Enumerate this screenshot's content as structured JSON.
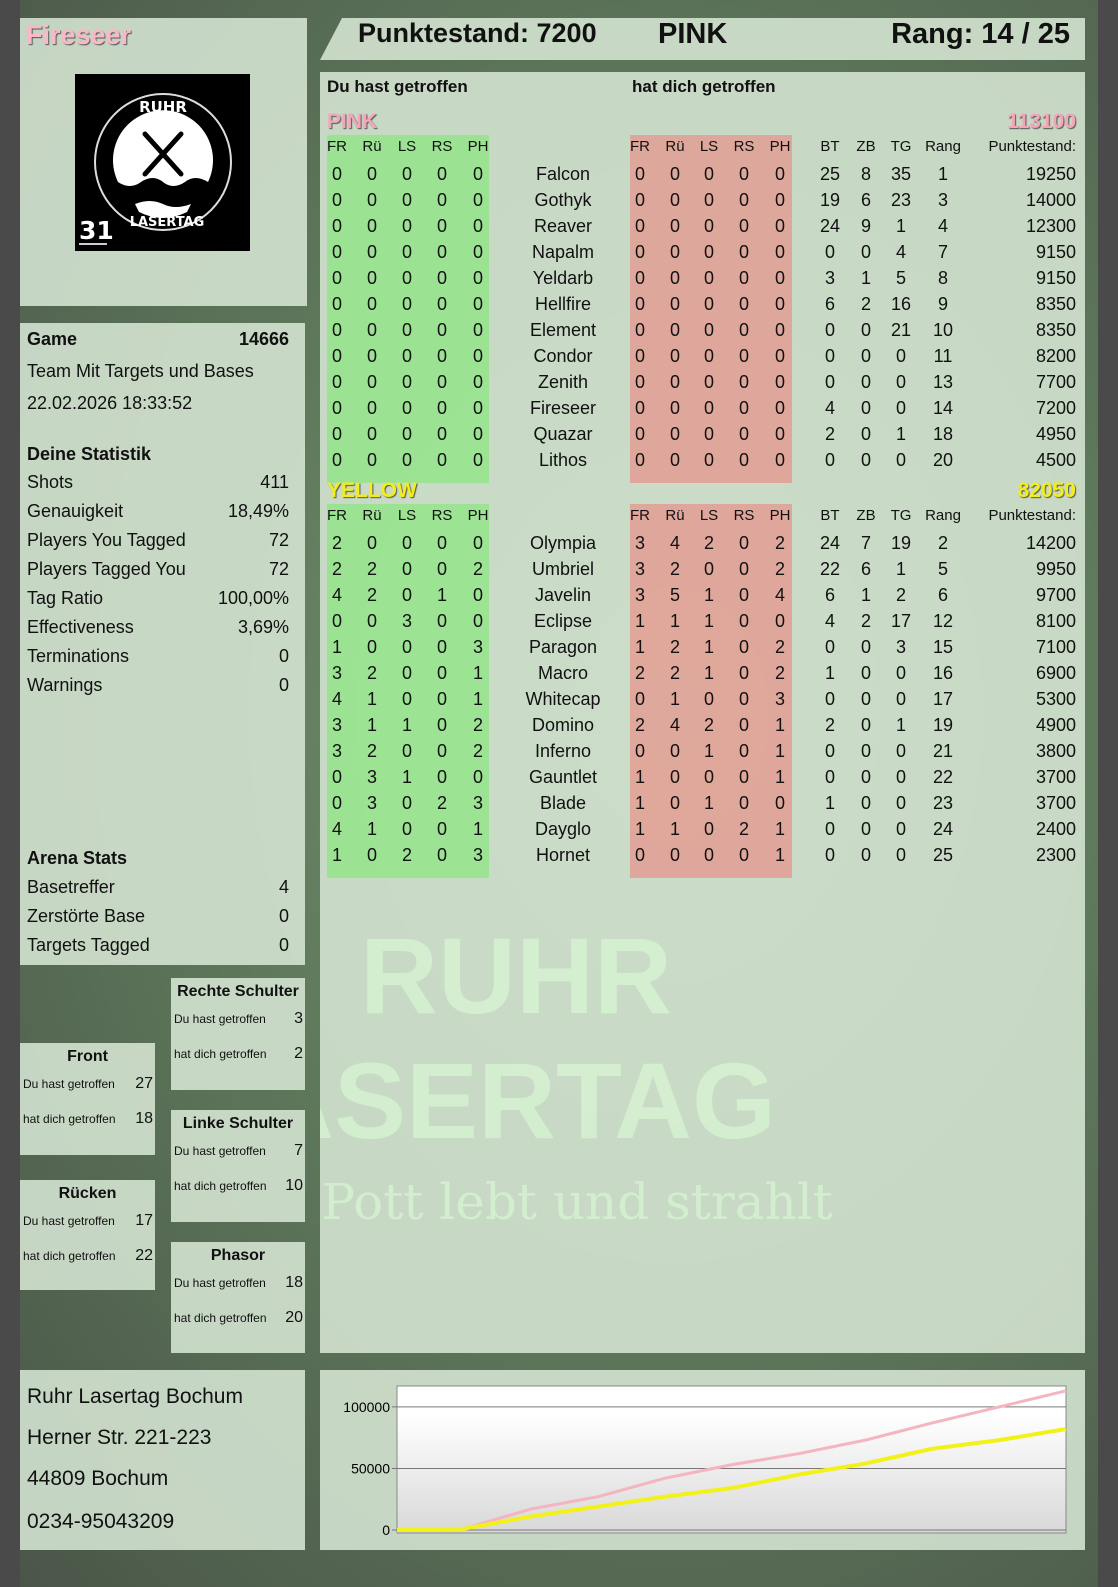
{
  "player": {
    "name": "Fireseer",
    "logo_text": "RUHR LASERTAG",
    "logo_number": "31"
  },
  "header": {
    "score_label": "Punktestand: 7200",
    "team": "PINK",
    "rank_label": "Rang: 14 / 25"
  },
  "main": {
    "you_hit_label": "Du hast getroffen",
    "hit_you_label": "hat dich getroffen",
    "cols_left": [
      "FR",
      "Rü",
      "LS",
      "RS",
      "PH"
    ],
    "cols_right": [
      "FR",
      "Rü",
      "LS",
      "RS",
      "PH"
    ],
    "cols_stats": [
      "BT",
      "ZB",
      "TG",
      "Rang",
      "Punktestand:"
    ],
    "teams": [
      {
        "name": "PINK",
        "score": "113100",
        "color": "#f4a6b8",
        "rows": [
          [
            "0",
            "0",
            "0",
            "0",
            "0",
            "Falcon",
            "0",
            "0",
            "0",
            "0",
            "0",
            "25",
            "8",
            "35",
            "1",
            "19250"
          ],
          [
            "0",
            "0",
            "0",
            "0",
            "0",
            "Gothyk",
            "0",
            "0",
            "0",
            "0",
            "0",
            "19",
            "6",
            "23",
            "3",
            "14000"
          ],
          [
            "0",
            "0",
            "0",
            "0",
            "0",
            "Reaver",
            "0",
            "0",
            "0",
            "0",
            "0",
            "24",
            "9",
            "1",
            "4",
            "12300"
          ],
          [
            "0",
            "0",
            "0",
            "0",
            "0",
            "Napalm",
            "0",
            "0",
            "0",
            "0",
            "0",
            "0",
            "0",
            "4",
            "7",
            "9150"
          ],
          [
            "0",
            "0",
            "0",
            "0",
            "0",
            "Yeldarb",
            "0",
            "0",
            "0",
            "0",
            "0",
            "3",
            "1",
            "5",
            "8",
            "9150"
          ],
          [
            "0",
            "0",
            "0",
            "0",
            "0",
            "Hellfire",
            "0",
            "0",
            "0",
            "0",
            "0",
            "6",
            "2",
            "16",
            "9",
            "8350"
          ],
          [
            "0",
            "0",
            "0",
            "0",
            "0",
            "Element",
            "0",
            "0",
            "0",
            "0",
            "0",
            "0",
            "0",
            "21",
            "10",
            "8350"
          ],
          [
            "0",
            "0",
            "0",
            "0",
            "0",
            "Condor",
            "0",
            "0",
            "0",
            "0",
            "0",
            "0",
            "0",
            "0",
            "11",
            "8200"
          ],
          [
            "0",
            "0",
            "0",
            "0",
            "0",
            "Zenith",
            "0",
            "0",
            "0",
            "0",
            "0",
            "0",
            "0",
            "0",
            "13",
            "7700"
          ],
          [
            "0",
            "0",
            "0",
            "0",
            "0",
            "Fireseer",
            "0",
            "0",
            "0",
            "0",
            "0",
            "4",
            "0",
            "0",
            "14",
            "7200"
          ],
          [
            "0",
            "0",
            "0",
            "0",
            "0",
            "Quazar",
            "0",
            "0",
            "0",
            "0",
            "0",
            "2",
            "0",
            "1",
            "18",
            "4950"
          ],
          [
            "0",
            "0",
            "0",
            "0",
            "0",
            "Lithos",
            "0",
            "0",
            "0",
            "0",
            "0",
            "0",
            "0",
            "0",
            "20",
            "4500"
          ]
        ]
      },
      {
        "name": "YELLOW",
        "score": "82050",
        "color": "#f2ee1a",
        "rows": [
          [
            "2",
            "0",
            "0",
            "0",
            "0",
            "Olympia",
            "3",
            "4",
            "2",
            "0",
            "2",
            "24",
            "7",
            "19",
            "2",
            "14200"
          ],
          [
            "2",
            "2",
            "0",
            "0",
            "2",
            "Umbriel",
            "3",
            "2",
            "0",
            "0",
            "2",
            "22",
            "6",
            "1",
            "5",
            "9950"
          ],
          [
            "4",
            "2",
            "0",
            "1",
            "0",
            "Javelin",
            "3",
            "5",
            "1",
            "0",
            "4",
            "6",
            "1",
            "2",
            "6",
            "9700"
          ],
          [
            "0",
            "0",
            "3",
            "0",
            "0",
            "Eclipse",
            "1",
            "1",
            "1",
            "0",
            "0",
            "4",
            "2",
            "17",
            "12",
            "8100"
          ],
          [
            "1",
            "0",
            "0",
            "0",
            "3",
            "Paragon",
            "1",
            "2",
            "1",
            "0",
            "2",
            "0",
            "0",
            "3",
            "15",
            "7100"
          ],
          [
            "3",
            "2",
            "0",
            "0",
            "1",
            "Macro",
            "2",
            "2",
            "1",
            "0",
            "2",
            "1",
            "0",
            "0",
            "16",
            "6900"
          ],
          [
            "4",
            "1",
            "0",
            "0",
            "1",
            "Whitecap",
            "0",
            "1",
            "0",
            "0",
            "3",
            "0",
            "0",
            "0",
            "17",
            "5300"
          ],
          [
            "3",
            "1",
            "1",
            "0",
            "2",
            "Domino",
            "2",
            "4",
            "2",
            "0",
            "1",
            "2",
            "0",
            "1",
            "19",
            "4900"
          ],
          [
            "3",
            "2",
            "0",
            "0",
            "2",
            "Inferno",
            "0",
            "0",
            "1",
            "0",
            "1",
            "0",
            "0",
            "0",
            "21",
            "3800"
          ],
          [
            "0",
            "3",
            "1",
            "0",
            "0",
            "Gauntlet",
            "1",
            "0",
            "0",
            "0",
            "1",
            "0",
            "0",
            "0",
            "22",
            "3700"
          ],
          [
            "0",
            "3",
            "0",
            "2",
            "3",
            "Blade",
            "1",
            "0",
            "1",
            "0",
            "0",
            "1",
            "0",
            "0",
            "23",
            "3700"
          ],
          [
            "4",
            "1",
            "0",
            "0",
            "1",
            "Dayglo",
            "1",
            "1",
            "0",
            "2",
            "1",
            "0",
            "0",
            "0",
            "24",
            "2400"
          ],
          [
            "1",
            "0",
            "2",
            "0",
            "3",
            "Hornet",
            "0",
            "0",
            "0",
            "0",
            "1",
            "0",
            "0",
            "0",
            "25",
            "2300"
          ]
        ]
      }
    ],
    "watermark": {
      "line1": "RUHR",
      "line2": "LASERTAG",
      "line3": "Der Pott lebt und strahlt"
    }
  },
  "game": {
    "label": "Game",
    "id": "14666",
    "mode": "Team Mit Targets und Bases",
    "datetime": "22.02.2026 18:33:52"
  },
  "stats": {
    "title": "Deine Statistik",
    "items": [
      {
        "label": "Shots",
        "value": "411"
      },
      {
        "label": "Genauigkeit",
        "value": "18,49%"
      },
      {
        "label": "Players You Tagged",
        "value": "72"
      },
      {
        "label": "Players Tagged You",
        "value": "72"
      },
      {
        "label": "Tag Ratio",
        "value": "100,00%"
      },
      {
        "label": "Effectiveness",
        "value": "3,69%"
      },
      {
        "label": "Terminations",
        "value": "0"
      },
      {
        "label": "Warnings",
        "value": "0"
      }
    ]
  },
  "arena": {
    "title": "Arena Stats",
    "items": [
      {
        "label": "Basetreffer",
        "value": "4"
      },
      {
        "label": "Zerstörte Base",
        "value": "0"
      },
      {
        "label": "Targets Tagged",
        "value": "0"
      }
    ]
  },
  "zones": [
    {
      "title": "Rechte Schulter",
      "you_hit": "3",
      "hit_you": "2"
    },
    {
      "title": "Front",
      "you_hit": "27",
      "hit_you": "18"
    },
    {
      "title": "Linke Schulter",
      "you_hit": "7",
      "hit_you": "10"
    },
    {
      "title": "Rücken",
      "you_hit": "17",
      "hit_you": "22"
    },
    {
      "title": "Phasor",
      "you_hit": "18",
      "hit_you": "20"
    }
  ],
  "zone_labels": {
    "you_hit": "Du hast getroffen",
    "hit_you": "hat dich getroffen"
  },
  "address": [
    "Ruhr Lasertag Bochum",
    "Herner Str. 221-223",
    "44809 Bochum",
    "0234-95043209"
  ],
  "chart_data": {
    "type": "line",
    "title": "",
    "xlabel": "",
    "ylabel": "",
    "ylim": [
      0,
      117000
    ],
    "yticks": [
      0,
      50000,
      100000
    ],
    "grid": true,
    "x": [
      0,
      1,
      2,
      3,
      4,
      5,
      6,
      7,
      8,
      9,
      10
    ],
    "series": [
      {
        "color": "#f4b4c0",
        "values": [
          0,
          1000,
          17000,
          27000,
          42000,
          53000,
          62000,
          73000,
          87000,
          100000,
          113100
        ]
      },
      {
        "color": "#f2f21a",
        "values": [
          0,
          1000,
          11000,
          19000,
          27000,
          34000,
          45000,
          54000,
          66000,
          73000,
          82050
        ]
      }
    ]
  }
}
